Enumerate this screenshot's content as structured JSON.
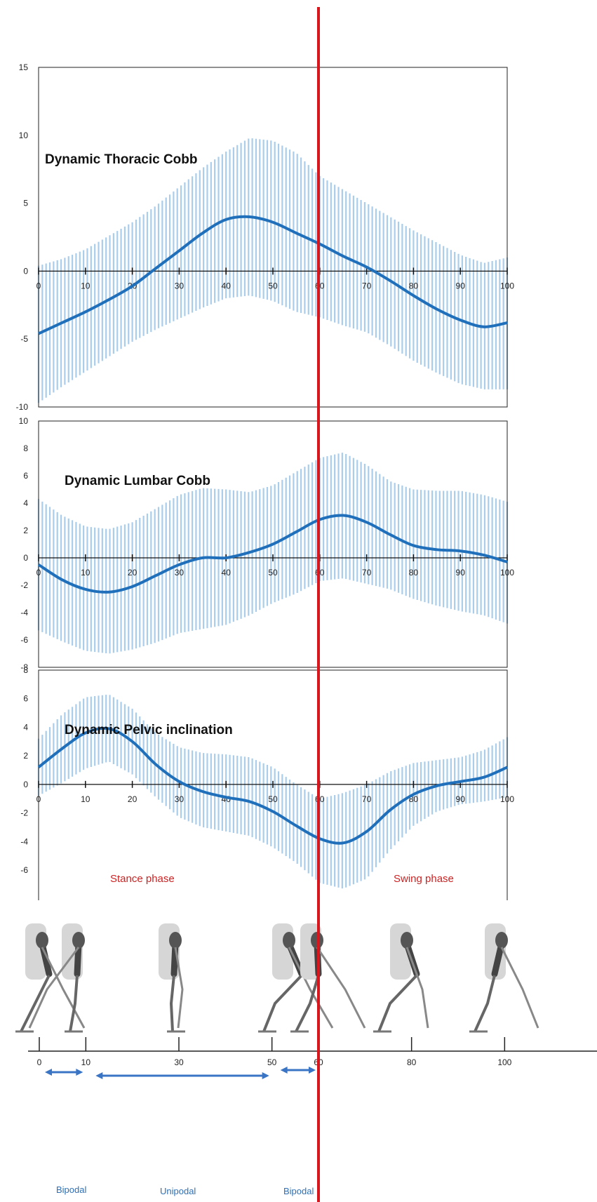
{
  "colors": {
    "band": "#a9cdea",
    "mean_line": "#1f6fba",
    "marker_line": "#d9161b",
    "phase_text": "#cc2222",
    "gait_text": "#2e6fb5",
    "arrow": "#3a74c4"
  },
  "marker_x": 60,
  "chart_data": [
    {
      "type": "area",
      "title": "Dynamic Thoracic Cobb",
      "x_ticks": [
        0,
        10,
        20,
        30,
        40,
        50,
        60,
        70,
        80,
        90,
        100
      ],
      "y_ticks": [
        15,
        10,
        5,
        0,
        -5,
        -10
      ],
      "xlim": [
        0,
        100
      ],
      "ylim": [
        -10,
        15
      ],
      "series": [
        {
          "x": [
            0,
            5,
            10,
            15,
            20,
            25,
            30,
            35,
            40,
            45,
            50,
            55,
            60,
            65,
            70,
            75,
            80,
            85,
            90,
            95,
            100
          ],
          "mean": [
            -4.6,
            -3.8,
            -3.0,
            -2.1,
            -1.1,
            0.2,
            1.5,
            2.8,
            3.8,
            4.0,
            3.6,
            2.8,
            2.0,
            1.1,
            0.3,
            -0.7,
            -1.8,
            -2.8,
            -3.6,
            -4.1,
            -3.8
          ],
          "upper": [
            0.4,
            0.9,
            1.6,
            2.6,
            3.6,
            4.8,
            6.2,
            7.6,
            8.8,
            9.8,
            9.6,
            8.7,
            7.0,
            6.0,
            5.0,
            4.0,
            3.0,
            2.1,
            1.2,
            0.6,
            1.0
          ],
          "lower": [
            -9.7,
            -8.5,
            -7.4,
            -6.3,
            -5.2,
            -4.3,
            -3.5,
            -2.7,
            -2.0,
            -1.8,
            -2.2,
            -3.0,
            -3.4,
            -4.0,
            -4.5,
            -5.5,
            -6.6,
            -7.5,
            -8.3,
            -8.7,
            -8.7
          ]
        }
      ]
    },
    {
      "type": "area",
      "title": "Dynamic Lumbar Cobb",
      "x_ticks": [
        0,
        10,
        20,
        30,
        40,
        50,
        60,
        70,
        80,
        90,
        100
      ],
      "y_ticks": [
        10,
        8,
        6,
        4,
        2,
        0,
        -2,
        -4,
        -6,
        -8
      ],
      "xlim": [
        0,
        100
      ],
      "ylim": [
        -8,
        10
      ],
      "series": [
        {
          "x": [
            0,
            5,
            10,
            15,
            20,
            25,
            30,
            35,
            40,
            45,
            50,
            55,
            60,
            65,
            70,
            75,
            80,
            85,
            90,
            95,
            100
          ],
          "mean": [
            -0.5,
            -1.6,
            -2.3,
            -2.5,
            -2.1,
            -1.3,
            -0.5,
            0.0,
            0.0,
            0.4,
            1.0,
            1.9,
            2.8,
            3.1,
            2.6,
            1.7,
            0.9,
            0.6,
            0.5,
            0.2,
            -0.3
          ],
          "upper": [
            4.3,
            3.1,
            2.3,
            2.1,
            2.6,
            3.6,
            4.6,
            5.1,
            5.0,
            4.8,
            5.3,
            6.3,
            7.3,
            7.7,
            6.8,
            5.6,
            5.0,
            4.9,
            4.9,
            4.6,
            4.1
          ],
          "lower": [
            -5.3,
            -6.1,
            -6.8,
            -7.0,
            -6.7,
            -6.2,
            -5.5,
            -5.2,
            -4.9,
            -4.2,
            -3.3,
            -2.6,
            -1.7,
            -1.5,
            -1.9,
            -2.3,
            -3.0,
            -3.5,
            -3.9,
            -4.2,
            -4.8
          ]
        }
      ]
    },
    {
      "type": "area",
      "title": "Dynamic Pelvic inclination",
      "x_ticks": [
        0,
        10,
        20,
        30,
        40,
        50,
        60,
        70,
        80,
        90,
        100
      ],
      "y_ticks": [
        8,
        6,
        4,
        2,
        0,
        -2,
        -4,
        -6
      ],
      "xlim": [
        0,
        100
      ],
      "ylim": [
        -7,
        8
      ],
      "series": [
        {
          "x": [
            0,
            5,
            10,
            15,
            20,
            25,
            30,
            35,
            40,
            45,
            50,
            55,
            60,
            65,
            70,
            75,
            80,
            85,
            90,
            95,
            100
          ],
          "mean": [
            1.2,
            2.5,
            3.6,
            3.9,
            3.0,
            1.4,
            0.2,
            -0.5,
            -0.9,
            -1.2,
            -1.9,
            -2.9,
            -3.8,
            -4.1,
            -3.3,
            -1.8,
            -0.7,
            -0.1,
            0.2,
            0.5,
            1.2
          ],
          "upper": [
            3.2,
            4.9,
            6.1,
            6.3,
            5.3,
            3.6,
            2.6,
            2.2,
            2.1,
            1.9,
            1.2,
            0.0,
            -1.0,
            -0.6,
            0.0,
            0.9,
            1.5,
            1.7,
            1.9,
            2.4,
            3.3
          ],
          "lower": [
            -0.8,
            0.1,
            1.1,
            1.6,
            0.7,
            -0.9,
            -2.3,
            -3.0,
            -3.3,
            -3.6,
            -4.4,
            -5.5,
            -6.9,
            -7.3,
            -6.6,
            -4.6,
            -2.9,
            -1.9,
            -1.4,
            -1.2,
            -0.9
          ]
        }
      ]
    }
  ],
  "phases": {
    "stance": "Stance phase",
    "swing": "Swing phase"
  },
  "gait_axis": {
    "ticks": [
      0,
      10,
      30,
      50,
      60,
      80,
      100
    ],
    "bipodal_1": "Bipodal",
    "unipodal": "Unipodal",
    "bipodal_2": "Bipodal"
  }
}
